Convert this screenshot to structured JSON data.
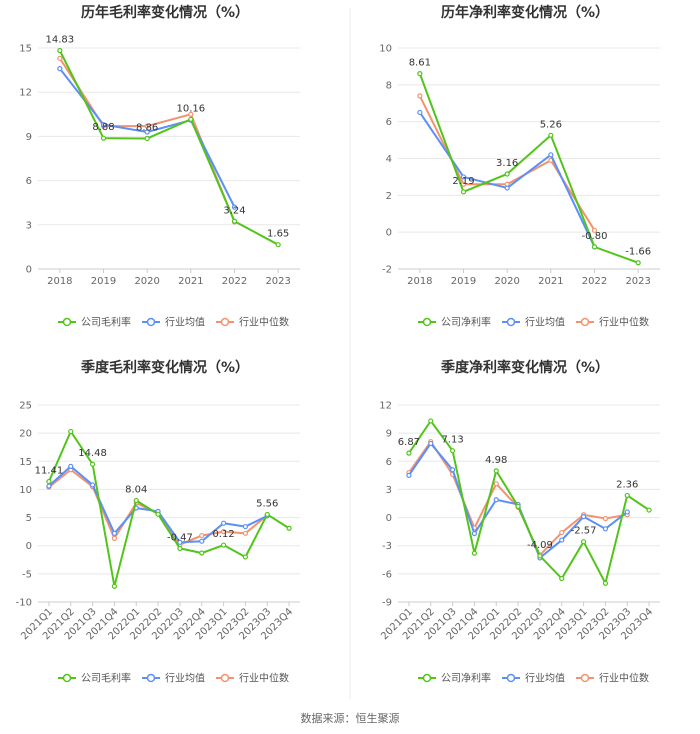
{
  "source": "数据来源：恒生聚源",
  "colors": {
    "company": "#52c41a",
    "avg": "#5b8ff9",
    "median": "#f4926f"
  },
  "chart_data": [
    {
      "type": "line",
      "title": "历年毛利率变化情况（%）",
      "categories": [
        "2018",
        "2019",
        "2020",
        "2021",
        "2022",
        "2023"
      ],
      "ylim": [
        0,
        15
      ],
      "yticks": [
        0,
        3,
        6,
        9,
        12,
        15
      ],
      "series": [
        {
          "name": "公司毛利率",
          "values": [
            14.83,
            8.88,
            8.86,
            10.16,
            3.24,
            1.65
          ]
        },
        {
          "name": "行业均值",
          "values": [
            13.6,
            9.8,
            9.3,
            10.1,
            4.2,
            null
          ]
        },
        {
          "name": "行业中位数",
          "values": [
            14.3,
            9.7,
            9.7,
            10.5,
            3.2,
            null
          ]
        }
      ],
      "labels": [
        {
          "i": 0,
          "text": "14.83"
        },
        {
          "i": 1,
          "text": "8.88"
        },
        {
          "i": 2,
          "text": "8.86"
        },
        {
          "i": 3,
          "text": "10.16"
        },
        {
          "i": 4,
          "text": "3.24"
        },
        {
          "i": 5,
          "text": "1.65"
        }
      ]
    },
    {
      "type": "line",
      "title": "历年净利率变化情况（%）",
      "categories": [
        "2018",
        "2019",
        "2020",
        "2021",
        "2022",
        "2023"
      ],
      "ylim": [
        -2,
        10
      ],
      "yticks": [
        -2,
        0,
        2,
        4,
        6,
        8,
        10
      ],
      "series": [
        {
          "name": "公司净利率",
          "values": [
            8.61,
            2.19,
            3.16,
            5.26,
            -0.8,
            -1.66
          ]
        },
        {
          "name": "行业均值",
          "values": [
            6.5,
            3.0,
            2.4,
            4.2,
            -0.8,
            null
          ]
        },
        {
          "name": "行业中位数",
          "values": [
            7.4,
            2.6,
            2.6,
            3.9,
            0.1,
            null
          ]
        }
      ],
      "labels": [
        {
          "i": 0,
          "text": "8.61"
        },
        {
          "i": 1,
          "text": "2.19"
        },
        {
          "i": 2,
          "text": "3.16"
        },
        {
          "i": 3,
          "text": "5.26"
        },
        {
          "i": 4,
          "text": "-0.80"
        },
        {
          "i": 5,
          "text": "-1.66"
        }
      ]
    },
    {
      "type": "line",
      "title": "季度毛利率变化情况（%）",
      "categories": [
        "2021Q1",
        "2021Q2",
        "2021Q3",
        "2021Q4",
        "2022Q1",
        "2022Q2",
        "2022Q3",
        "2022Q4",
        "2023Q1",
        "2023Q2",
        "2023Q3",
        "2023Q4"
      ],
      "ylim": [
        -10,
        25
      ],
      "yticks": [
        -10,
        -5,
        0,
        5,
        10,
        15,
        20,
        25
      ],
      "series": [
        {
          "name": "公司毛利率",
          "values": [
            11.41,
            20.3,
            14.48,
            -7.2,
            8.04,
            5.6,
            -0.47,
            -1.3,
            0.12,
            -2.0,
            5.56,
            3.1
          ]
        },
        {
          "name": "行业均值",
          "values": [
            10.6,
            14.1,
            10.8,
            2.2,
            6.7,
            6.1,
            0.6,
            0.8,
            4.0,
            3.4,
            5.3,
            null
          ]
        },
        {
          "name": "行业中位数",
          "values": [
            10.4,
            13.5,
            10.5,
            1.3,
            7.6,
            5.7,
            0.2,
            1.8,
            2.5,
            2.2,
            5.4,
            null
          ]
        }
      ],
      "labels": [
        {
          "i": 0,
          "text": "11.41"
        },
        {
          "i": 2,
          "text": "14.48"
        },
        {
          "i": 4,
          "text": "8.04"
        },
        {
          "i": 6,
          "text": "-0.47"
        },
        {
          "i": 8,
          "text": "0.12"
        },
        {
          "i": 10,
          "text": "5.56"
        }
      ]
    },
    {
      "type": "line",
      "title": "季度净利率变化情况（%）",
      "categories": [
        "2021Q1",
        "2021Q2",
        "2021Q3",
        "2021Q4",
        "2022Q1",
        "2022Q2",
        "2022Q3",
        "2022Q4",
        "2023Q1",
        "2023Q2",
        "2023Q3",
        "2023Q4"
      ],
      "ylim": [
        -9,
        12
      ],
      "yticks": [
        -9,
        -6,
        -3,
        0,
        3,
        6,
        9,
        12
      ],
      "series": [
        {
          "name": "公司净利率",
          "values": [
            6.87,
            10.3,
            7.13,
            -3.8,
            4.98,
            1.2,
            -4.09,
            -6.5,
            -2.57,
            -7.0,
            2.36,
            0.8
          ]
        },
        {
          "name": "行业均值",
          "values": [
            4.5,
            7.9,
            5.1,
            -1.7,
            1.9,
            1.4,
            -4.3,
            -2.4,
            0.1,
            -1.2,
            0.6,
            null
          ]
        },
        {
          "name": "行业中位数",
          "values": [
            4.8,
            8.1,
            4.6,
            -1.1,
            3.6,
            1.1,
            -4.0,
            -1.6,
            0.3,
            -0.1,
            0.3,
            null
          ]
        }
      ],
      "labels": [
        {
          "i": 0,
          "text": "6.87"
        },
        {
          "i": 2,
          "text": "7.13"
        },
        {
          "i": 4,
          "text": "4.98"
        },
        {
          "i": 6,
          "text": "-4.09"
        },
        {
          "i": 8,
          "text": "-2.57"
        },
        {
          "i": 10,
          "text": "2.36"
        }
      ]
    }
  ]
}
